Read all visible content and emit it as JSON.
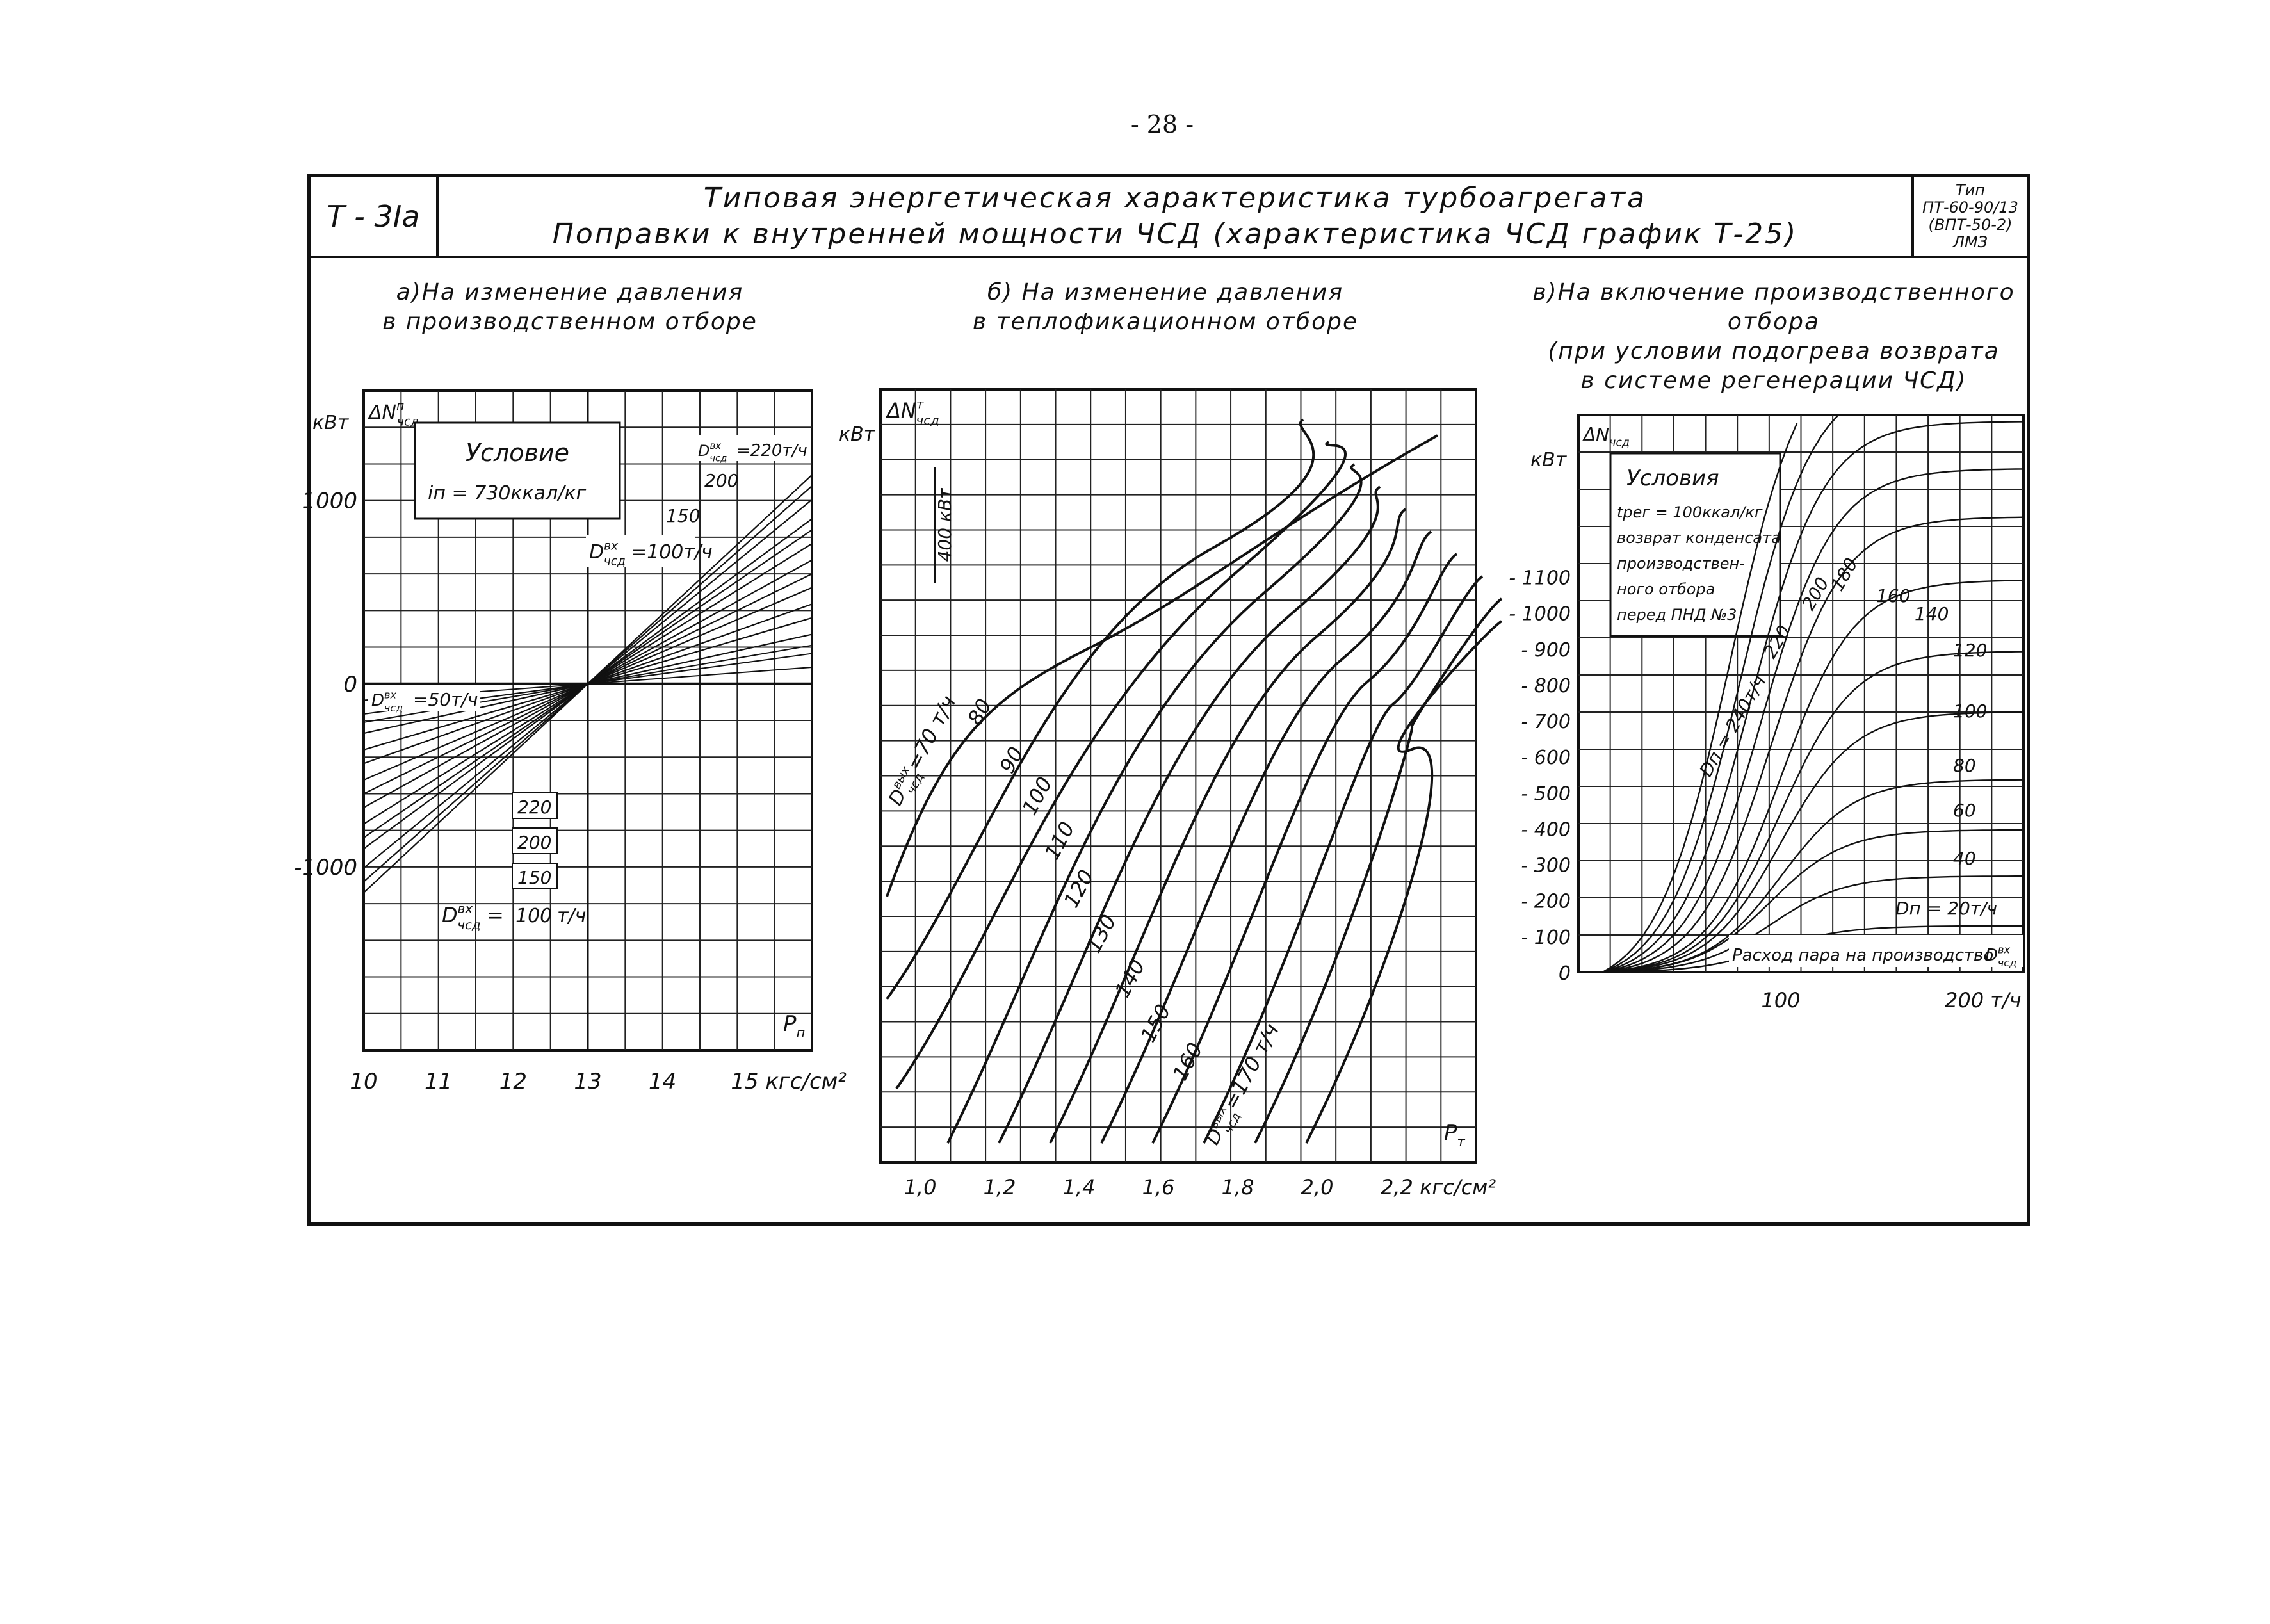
{
  "page": {
    "number": "- 28 -"
  },
  "header": {
    "sheet_code": "Т - 3Iа",
    "title_line1": "Типовая энергетическая характеристика турбоагрегата",
    "title_line2": "Поправки к внутренней мощности ЧСД (характеристика ЧСД график Т-25)",
    "type_line1": "Тип",
    "type_line2": "ПТ-60-90/13",
    "type_line3": "(ВПТ-50-2)",
    "type_line4": "ЛМЗ"
  },
  "captions": {
    "a_line1": "а)На изменение давления",
    "a_line2": "в производственном отборе",
    "b_line1": "б) На изменение давления",
    "b_line2": "в теплофикационном отборе",
    "c_line1": "в)На включение производственного",
    "c_line2": "отбора",
    "c_line3": "(при условии подогрева возврата",
    "c_line4": "в системе регенерации ЧСД)"
  },
  "chart_data": [
    {
      "id": "a",
      "type": "line",
      "ylabel": "ΔN",
      "ylabel_sup": "п",
      "ylabel_sub": "чсд",
      "yunit": "кВт",
      "xlabel": "Р",
      "xlabel_sub": "п",
      "xlim": [
        10,
        16
      ],
      "ylim": [
        -2000,
        1600
      ],
      "x_ticks": [
        10,
        11,
        12,
        13,
        14
      ],
      "x_tick_labels": [
        "10",
        "11",
        "12",
        "13",
        "14"
      ],
      "x_last_tick_label": "15 кгс/см²",
      "y_ticks": [
        1000,
        0,
        -1000
      ],
      "y_tick_labels": [
        "1000",
        "0",
        "-1000"
      ],
      "pivot": [
        13,
        0
      ],
      "condition_title": "Условие",
      "condition_text": "iп = 730ккал/кг",
      "series": [
        {
          "name": "50",
          "slope": 90
        },
        {
          "name": "100",
          "slope": 175
        },
        {
          "name": "150",
          "slope": 255
        },
        {
          "name": "200",
          "slope": 335
        },
        {
          "name": "220",
          "slope": 380
        }
      ],
      "extra_slopes": [
        120,
        145,
        200,
        225,
        280,
        300,
        360
      ],
      "annotations": {
        "d_label": "D",
        "d_sup": "вх",
        "d_sub": "чсд",
        "top_max": "=220т/ч",
        "top_200": "200",
        "top_150": "150",
        "top_100": "=100т/ч",
        "left_50": "=50т/ч",
        "bot_220": "220",
        "bot_200": "200",
        "bot_150": "150",
        "bot_100": "100",
        "bot_unit": "т/ч"
      }
    },
    {
      "id": "b",
      "type": "line",
      "ylabel": "ΔN",
      "ylabel_sup": "т",
      "ylabel_sub": "чсд",
      "yunit": "кВт",
      "xlabel": "Р",
      "xlabel_sub": "т",
      "xlim": [
        0.9,
        2.4
      ],
      "x_ticks": [
        1.0,
        1.2,
        1.4,
        1.6,
        1.8,
        2.0
      ],
      "x_tick_labels": [
        "1,0",
        "1,2",
        "1,4",
        "1,6",
        "1,8",
        "2,0"
      ],
      "x_last_tick_label": "2,2 кгс/см²",
      "scale_bar_label": "400 кВт",
      "series_label_prefix": "D",
      "series_label_sup": "вых",
      "series_label_sub": "чсд",
      "series": [
        {
          "name": "70",
          "label": "=70 т/ч"
        },
        {
          "name": "80",
          "label": "80"
        },
        {
          "name": "90",
          "label": "90"
        },
        {
          "name": "100",
          "label": "100"
        },
        {
          "name": "110",
          "label": "110"
        },
        {
          "name": "120",
          "label": "120"
        },
        {
          "name": "130",
          "label": "130"
        },
        {
          "name": "140",
          "label": "140"
        },
        {
          "name": "150",
          "label": "150"
        },
        {
          "name": "160",
          "label": "160"
        },
        {
          "name": "170",
          "label": "=170 т/ч"
        }
      ]
    },
    {
      "id": "c",
      "type": "line",
      "ylabel": "ΔN",
      "ylabel_sub": "чсд",
      "yunit": "кВт",
      "xlim": [
        0,
        220
      ],
      "ylim": [
        0,
        1550
      ],
      "x_ticks": [
        100,
        200
      ],
      "x_tick_labels": [
        "100",
        "200 т/ч"
      ],
      "x_axis_title": "Расход пара на производство",
      "x_axis_symbol": "D",
      "x_axis_symbol_sup": "вх",
      "x_axis_symbol_sub": "чсд",
      "y_ticks": [
        1100,
        1000,
        900,
        800,
        700,
        600,
        500,
        400,
        300,
        200,
        100,
        0
      ],
      "y_tick_labels": [
        "- 1100",
        "- 1000",
        "- 900",
        "- 800",
        "- 700",
        "- 600",
        "- 500",
        "- 400",
        "- 300",
        "- 200",
        "- 100",
        "0"
      ],
      "condition_title": "Условия",
      "condition_lines": [
        "tрег = 100ккал/кг",
        "возврат конденсата",
        "производствен-",
        "ного отбора",
        "перед ПНД №3"
      ],
      "series": [
        {
          "name": "20",
          "label": "Dп = 20т/ч",
          "plateau": 130,
          "mid": 95
        },
        {
          "name": "40",
          "label": "40",
          "plateau": 270,
          "mid": 95
        },
        {
          "name": "60",
          "label": "60",
          "plateau": 400,
          "mid": 95
        },
        {
          "name": "80",
          "label": "80",
          "plateau": 540,
          "mid": 100
        },
        {
          "name": "100",
          "label": "100",
          "plateau": 730,
          "mid": 100
        },
        {
          "name": "120",
          "label": "120",
          "plateau": 900,
          "mid": 100
        },
        {
          "name": "140",
          "label": "140",
          "plateau": 1100,
          "mid": 100
        },
        {
          "name": "160",
          "label": "160",
          "plateau": 1280,
          "mid": 95
        },
        {
          "name": "180",
          "label": "180",
          "plateau": 1420,
          "mid": 90
        },
        {
          "name": "200",
          "label": "200",
          "plateau": 1560,
          "mid": 85
        },
        {
          "name": "220",
          "label": "220",
          "plateau": 1700,
          "mid": 80
        },
        {
          "name": "240",
          "label": "Dп = 240т/ч",
          "plateau": 1840,
          "mid": 75
        }
      ]
    }
  ]
}
